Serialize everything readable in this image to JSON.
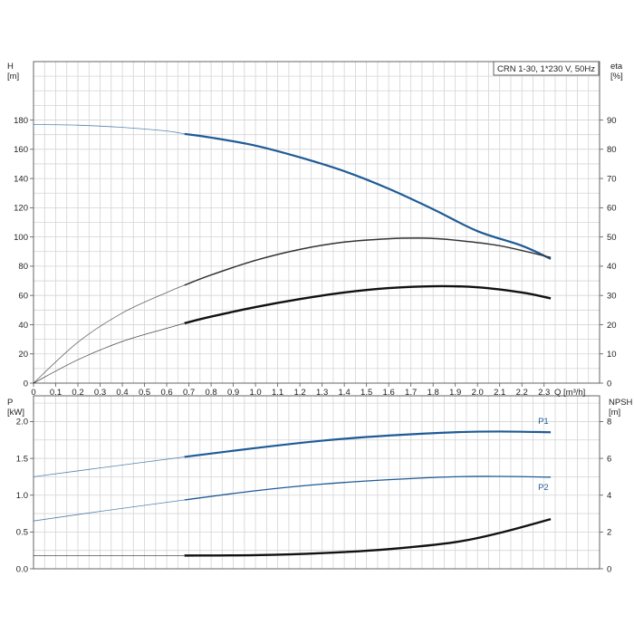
{
  "chart_data": [
    {
      "type": "line",
      "legend_box": "CRN 1-30, 1*230 V, 50Hz",
      "xlabel": "Q [m³/h]",
      "x_ticks": [
        "0",
        "0.1",
        "0.2",
        "0.3",
        "0.4",
        "0.5",
        "0.6",
        "0.7",
        "0.8",
        "0.9",
        "1.0",
        "1.1",
        "1.2",
        "1.3",
        "1.4",
        "1.5",
        "1.6",
        "1.7",
        "1.8",
        "1.9",
        "2.0",
        "2.1",
        "2.2",
        "2.3"
      ],
      "xlim": [
        0,
        2.55
      ],
      "ylabel_left": [
        "H",
        "[m]"
      ],
      "ylim_left": [
        0,
        220
      ],
      "y_ticks_left": [
        "0",
        "20",
        "40",
        "60",
        "80",
        "100",
        "120",
        "140",
        "160",
        "180"
      ],
      "ylabel_right": [
        "eta",
        "[%]"
      ],
      "ylim_right": [
        0,
        110
      ],
      "y_ticks_right": [
        "0",
        "10",
        "20",
        "30",
        "40",
        "50",
        "60",
        "70",
        "80",
        "90"
      ],
      "series": [
        {
          "axis": "left",
          "color": "#1f5b96",
          "width": 2.2,
          "op_start": 0.68,
          "x": [
            0,
            0.2,
            0.4,
            0.6,
            0.68,
            0.8,
            1.0,
            1.2,
            1.4,
            1.6,
            1.8,
            2.0,
            2.2,
            2.33
          ],
          "y": [
            177,
            176.5,
            175,
            172.5,
            170.5,
            168,
            162.5,
            154.5,
            145,
            133,
            119,
            104,
            94,
            85
          ]
        },
        {
          "axis": "left",
          "color": "#333333",
          "width": 1.5,
          "op_start": 0.68,
          "x": [
            0,
            0.2,
            0.4,
            0.6,
            0.68,
            0.8,
            1.0,
            1.2,
            1.4,
            1.6,
            1.75,
            1.9,
            2.1,
            2.33
          ],
          "y": [
            0,
            28,
            48,
            62,
            67,
            74,
            84,
            91.5,
            96.5,
            98.8,
            99.2,
            97.8,
            94,
            86
          ]
        },
        {
          "axis": "left",
          "color": "#111111",
          "width": 2.4,
          "op_start": 0.68,
          "x": [
            0,
            0.2,
            0.4,
            0.6,
            0.68,
            0.8,
            1.0,
            1.2,
            1.4,
            1.6,
            1.8,
            2.0,
            2.2,
            2.33
          ],
          "y": [
            0,
            16,
            28.5,
            37.5,
            41,
            45.5,
            52,
            57.5,
            62,
            65,
            66.3,
            65.6,
            62,
            58
          ]
        }
      ]
    },
    {
      "type": "line",
      "xlim": [
        0,
        2.55
      ],
      "ylabel_left": [
        "P",
        "[kW]"
      ],
      "ylim_left": [
        0,
        2.35
      ],
      "y_ticks_left": [
        "0.0",
        "0.5",
        "1.0",
        "1.5",
        "2.0"
      ],
      "ylabel_right": [
        "NPSH",
        "[m]"
      ],
      "ylim_right": [
        0,
        9.4
      ],
      "y_ticks_right": [
        "0",
        "2",
        "4",
        "6",
        "8"
      ],
      "series": [
        {
          "name": "P1",
          "axis": "left",
          "color": "#1f5b96",
          "width": 2.2,
          "op_start": 0.68,
          "x": [
            0,
            0.3,
            0.68,
            1.0,
            1.3,
            1.6,
            1.9,
            2.1,
            2.33
          ],
          "y": [
            1.25,
            1.37,
            1.52,
            1.64,
            1.74,
            1.81,
            1.855,
            1.865,
            1.855
          ]
        },
        {
          "name": "P2",
          "axis": "left",
          "color": "#1f5b96",
          "width": 1.3,
          "op_start": 0.68,
          "x": [
            0,
            0.3,
            0.68,
            1.0,
            1.3,
            1.6,
            1.9,
            2.1,
            2.33
          ],
          "y": [
            0.65,
            0.78,
            0.935,
            1.06,
            1.15,
            1.21,
            1.25,
            1.255,
            1.245
          ]
        },
        {
          "axis": "right",
          "color": "#111111",
          "width": 2.4,
          "op_start": 0.68,
          "x": [
            0,
            0.3,
            0.68,
            1.0,
            1.3,
            1.6,
            1.9,
            2.1,
            2.33
          ],
          "y": [
            0.72,
            0.72,
            0.72,
            0.74,
            0.85,
            1.07,
            1.45,
            1.95,
            2.7
          ]
        }
      ]
    }
  ]
}
